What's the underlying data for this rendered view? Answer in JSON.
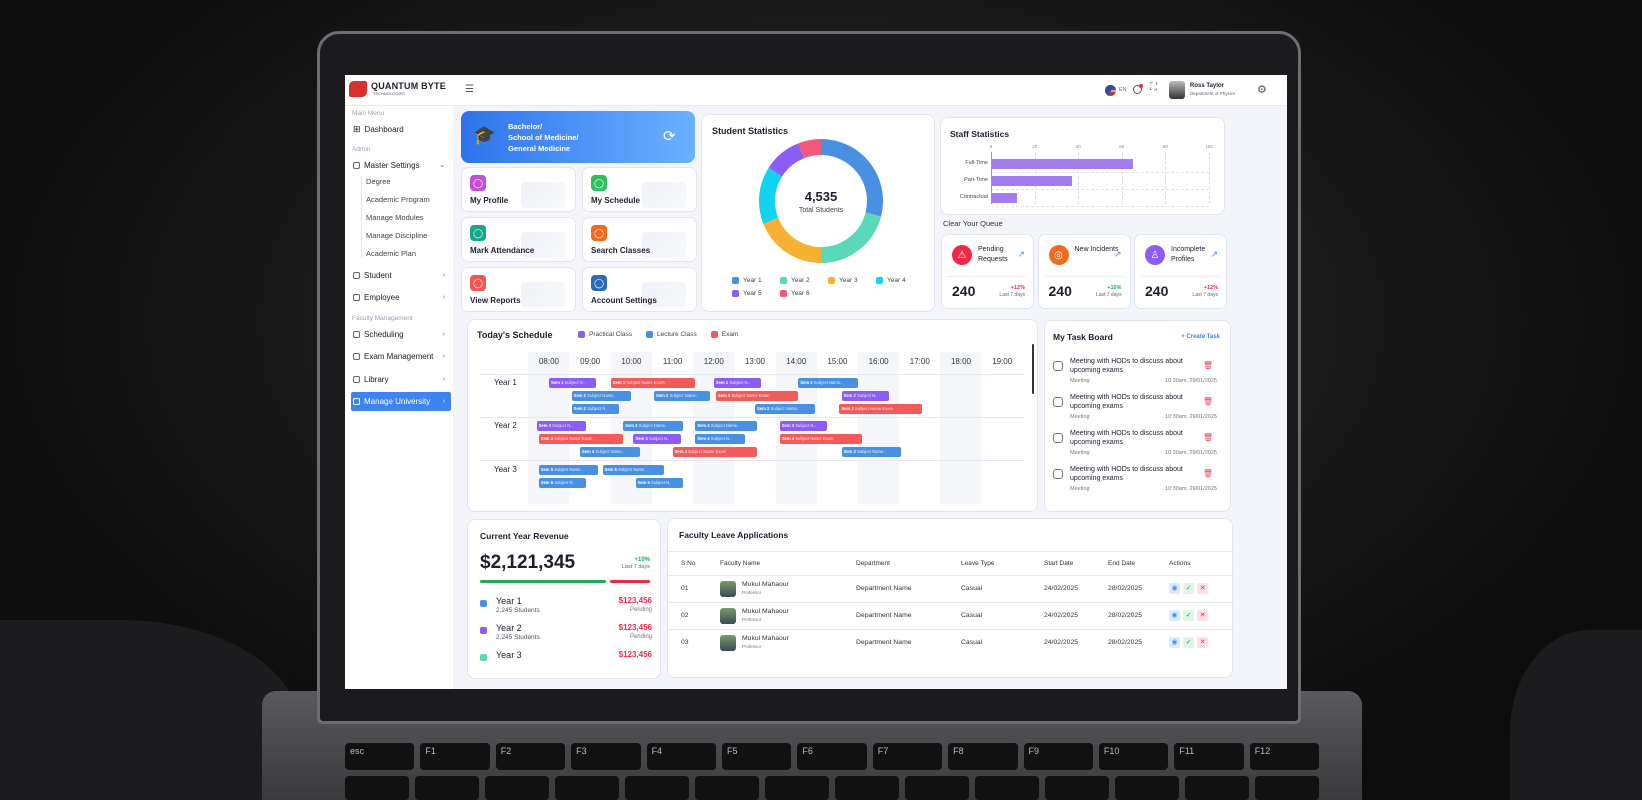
{
  "header": {
    "logo_name": "QUANTUM BYTE",
    "logo_sub": "TECHNOLOGIES",
    "language": "EN",
    "user_name": "Ross Taylor",
    "user_dept": "Department of Physics"
  },
  "sidebar": {
    "main_menu": "Main Menu",
    "dashboard": "Dashboard",
    "admin": "Admin",
    "master_settings": "Master Settings",
    "sub_items": [
      "Degree",
      "Academic Program",
      "Manage Modules",
      "Manage Discipline",
      "Academic Plan"
    ],
    "student": "Student",
    "employee": "Employee",
    "faculty_management": "Faculty Management",
    "scheduling": "Scheduling",
    "exam_management": "Exam Management",
    "library": "Library",
    "manage_university": "Manage University"
  },
  "banner": {
    "line1": "Bachelor/",
    "line2": "School of Medicine/",
    "line3": "General Medicine"
  },
  "quick_links": [
    {
      "label": "My Profile",
      "color": "#c04fd6"
    },
    {
      "label": "My Schedule",
      "color": "#2fbf5f"
    },
    {
      "label": "Mark Attendance",
      "color": "#12a88a"
    },
    {
      "label": "Search Classes",
      "color": "#f26a1b"
    },
    {
      "label": "View Reports",
      "color": "#f2564e"
    },
    {
      "label": "Account Settings",
      "color": "#2a6db5"
    }
  ],
  "student_stats": {
    "title": "Student Statistics",
    "total": "4,535",
    "total_label": "Total Students"
  },
  "staff_stats": {
    "title": "Staff Statistics"
  },
  "queue": {
    "title": "Clear Your Queue",
    "cards": [
      {
        "title": "Pending Requests",
        "value": "240",
        "change": "+12%",
        "period": "Last 7 days",
        "color": "#f0284a",
        "change_color": "#f0284a"
      },
      {
        "title": "New Incidents",
        "value": "240",
        "change": "+10%",
        "period": "Last 7 days",
        "color": "#f26a1b",
        "change_color": "#1fa855"
      },
      {
        "title": "Incomplete Profiles",
        "value": "240",
        "change": "+12%",
        "period": "Last 7 days",
        "color": "#8b5cf6",
        "change_color": "#f0284a"
      }
    ]
  },
  "schedule": {
    "title": "Today's Schedule",
    "legend": [
      {
        "label": "Practical Class",
        "color": "#8b5cf6"
      },
      {
        "label": "Lecture Class",
        "color": "#4a90e2"
      },
      {
        "label": "Exam",
        "color": "#f35b5b"
      }
    ],
    "times": [
      "08:00",
      "09:00",
      "10:00",
      "11:00",
      "12:00",
      "13:00",
      "14:00",
      "15:00",
      "16:00",
      "17:00",
      "18:00",
      "19:00"
    ],
    "rows": [
      "Year 1",
      "Year 2",
      "Year 3"
    ],
    "events": [
      {
        "row": 0,
        "lane": 0,
        "start": 8.0,
        "end": 9.15,
        "type": "practical",
        "sem": "Sem 1",
        "text": "Subject N.."
      },
      {
        "row": 0,
        "lane": 0,
        "start": 9.5,
        "end": 11.55,
        "type": "exam",
        "sem": "Sem 1",
        "text": "Subject Name Exam"
      },
      {
        "row": 0,
        "lane": 0,
        "start": 12.0,
        "end": 13.15,
        "type": "practical",
        "sem": "Sem 2",
        "text": "Subject N.."
      },
      {
        "row": 0,
        "lane": 0,
        "start": 14.05,
        "end": 15.5,
        "type": "lecture",
        "sem": "Sem 2",
        "text": "Subject Name.."
      },
      {
        "row": 0,
        "lane": 1,
        "start": 8.55,
        "end": 10.0,
        "type": "lecture",
        "sem": "Sem 2",
        "text": "Subject Name.."
      },
      {
        "row": 0,
        "lane": 1,
        "start": 10.55,
        "end": 11.9,
        "type": "lecture",
        "sem": "Sem 2",
        "text": "Subject Name.."
      },
      {
        "row": 0,
        "lane": 1,
        "start": 12.05,
        "end": 14.05,
        "type": "exam",
        "sem": "Sem 2",
        "text": "Subject Name Exam"
      },
      {
        "row": 0,
        "lane": 1,
        "start": 15.1,
        "end": 16.25,
        "type": "practical",
        "sem": "Sem 2",
        "text": "Subject N.."
      },
      {
        "row": 0,
        "lane": 2,
        "start": 8.55,
        "end": 9.7,
        "type": "lecture",
        "sem": "Sem 2",
        "text": "Subject N.."
      },
      {
        "row": 0,
        "lane": 2,
        "start": 13.0,
        "end": 14.45,
        "type": "lecture",
        "sem": "Sem 2",
        "text": "Subject Name.."
      },
      {
        "row": 0,
        "lane": 2,
        "start": 15.05,
        "end": 17.05,
        "type": "exam",
        "sem": "Sem 2",
        "text": "Subject Name Exam"
      },
      {
        "row": 1,
        "lane": 0,
        "start": 7.7,
        "end": 8.9,
        "type": "practical",
        "sem": "Sem 3",
        "text": "Subject N.."
      },
      {
        "row": 1,
        "lane": 0,
        "start": 9.8,
        "end": 11.25,
        "type": "lecture",
        "sem": "Sem 3",
        "text": "Subject Name.."
      },
      {
        "row": 1,
        "lane": 0,
        "start": 11.55,
        "end": 13.05,
        "type": "lecture",
        "sem": "Sem 3",
        "text": "Subject Name.."
      },
      {
        "row": 1,
        "lane": 0,
        "start": 13.6,
        "end": 14.75,
        "type": "practical",
        "sem": "Sem 3",
        "text": "Subject N.."
      },
      {
        "row": 1,
        "lane": 1,
        "start": 7.75,
        "end": 9.8,
        "type": "exam",
        "sem": "Sem 4",
        "text": "Subject Name Exam"
      },
      {
        "row": 1,
        "lane": 1,
        "start": 10.05,
        "end": 11.2,
        "type": "practical",
        "sem": "Sem 3",
        "text": "Subject N.."
      },
      {
        "row": 1,
        "lane": 1,
        "start": 11.55,
        "end": 12.75,
        "type": "lecture",
        "sem": "Sem 4",
        "text": "Subject N.."
      },
      {
        "row": 1,
        "lane": 1,
        "start": 13.6,
        "end": 15.6,
        "type": "exam",
        "sem": "Sem 4",
        "text": "Subject Name Exam"
      },
      {
        "row": 1,
        "lane": 2,
        "start": 8.75,
        "end": 10.2,
        "type": "lecture",
        "sem": "Sem 4",
        "text": "Subject Name.."
      },
      {
        "row": 1,
        "lane": 2,
        "start": 11.0,
        "end": 13.05,
        "type": "exam",
        "sem": "Sem 4",
        "text": "Subject Name Exam"
      },
      {
        "row": 1,
        "lane": 2,
        "start": 15.1,
        "end": 16.55,
        "type": "lecture",
        "sem": "Sem 3",
        "text": "Subject Name.."
      },
      {
        "row": 2,
        "lane": 0,
        "start": 7.75,
        "end": 9.2,
        "type": "lecture",
        "sem": "Sem 5",
        "text": "Subject Name.."
      },
      {
        "row": 2,
        "lane": 0,
        "start": 9.3,
        "end": 10.8,
        "type": "lecture",
        "sem": "Sem 5",
        "text": "Subject Name.."
      },
      {
        "row": 2,
        "lane": 1,
        "start": 7.75,
        "end": 8.9,
        "type": "lecture",
        "sem": "Sem 6",
        "text": "Subject N.."
      },
      {
        "row": 2,
        "lane": 1,
        "start": 10.1,
        "end": 11.25,
        "type": "lecture",
        "sem": "Sem 6",
        "text": "Subject N.."
      }
    ]
  },
  "tasks": {
    "title": "My Task Board",
    "create": "+ Create Task",
    "items": [
      {
        "text": "Meeting with HODs to discuss about upcoming exams",
        "tag": "Meeting",
        "date": "10:30am, 29/01/2025"
      },
      {
        "text": "Meeting with HODs to discuss about upcoming exams",
        "tag": "Meeting",
        "date": "10:30am, 29/01/2025"
      },
      {
        "text": "Meeting with HODs to discuss about upcoming exams",
        "tag": "Meeting",
        "date": "10:30am, 29/01/2025"
      },
      {
        "text": "Meeting with HODs to discuss about upcoming exams",
        "tag": "Meeting",
        "date": "10:30am, 29/01/2025"
      }
    ]
  },
  "revenue": {
    "title": "Current Year Revenue",
    "amount": "$2,121,345",
    "change": "+10%",
    "period": "Last 7 days",
    "collected_pct": 75,
    "years": [
      {
        "name": "Year 1",
        "students": "2,245 Students",
        "amount": "$123,456",
        "status": "Pending",
        "color": "#4a90e2"
      },
      {
        "name": "Year 2",
        "students": "2,245 Students",
        "amount": "$123,456",
        "status": "Pending",
        "color": "#8b5cf6"
      },
      {
        "name": "Year 3",
        "students": "",
        "amount": "$123,456",
        "status": "",
        "color": "#5ad8b8"
      }
    ]
  },
  "leave": {
    "title": "Faculty Leave Applications",
    "columns": [
      "S.No",
      "Faculty Name",
      "Department",
      "Leave Type",
      "Start Date",
      "End Date",
      "Actions"
    ],
    "rows": [
      {
        "sno": "01",
        "name": "Mukul Mahaour",
        "role": "Professor",
        "dept": "Department Name",
        "type": "Casual",
        "start": "24/02/2025",
        "end": "28/02/2025"
      },
      {
        "sno": "02",
        "name": "Mukul Mahaour",
        "role": "Professor",
        "dept": "Department Name",
        "type": "Casual",
        "start": "24/02/2025",
        "end": "28/02/2025"
      },
      {
        "sno": "03",
        "name": "Mukul Mahaour",
        "role": "Professor",
        "dept": "Department Name",
        "type": "Casual",
        "start": "24/02/2025",
        "end": "28/02/2025"
      }
    ]
  },
  "keyboard": {
    "top_row": [
      "esc",
      "F1",
      "F2",
      "F3",
      "F4",
      "F5",
      "F6",
      "F7",
      "F8",
      "F9",
      "F10",
      "F11",
      "F12"
    ]
  },
  "chart_data": [
    {
      "type": "pie",
      "variant": "donut",
      "title": "Student Statistics",
      "categories": [
        "Year 1",
        "Year 2",
        "Year 3",
        "Year 4",
        "Year 5",
        "Year 6"
      ],
      "values": [
        29,
        21,
        19,
        15,
        10,
        6
      ],
      "colors": [
        "#4a90e2",
        "#5ad8b8",
        "#f7b233",
        "#12d3f0",
        "#8b5cf6",
        "#f4587a"
      ],
      "legend": "bottom"
    },
    {
      "type": "bar",
      "orientation": "horizontal",
      "title": "Staff Statistics",
      "categories": [
        "Full-Time",
        "Part-Time",
        "Contractual"
      ],
      "values": [
        65,
        37,
        12
      ],
      "xlim": [
        0,
        100
      ],
      "xticks": [
        0,
        20,
        40,
        60,
        80,
        100
      ],
      "grid": true,
      "color": "#a57cf0"
    }
  ]
}
